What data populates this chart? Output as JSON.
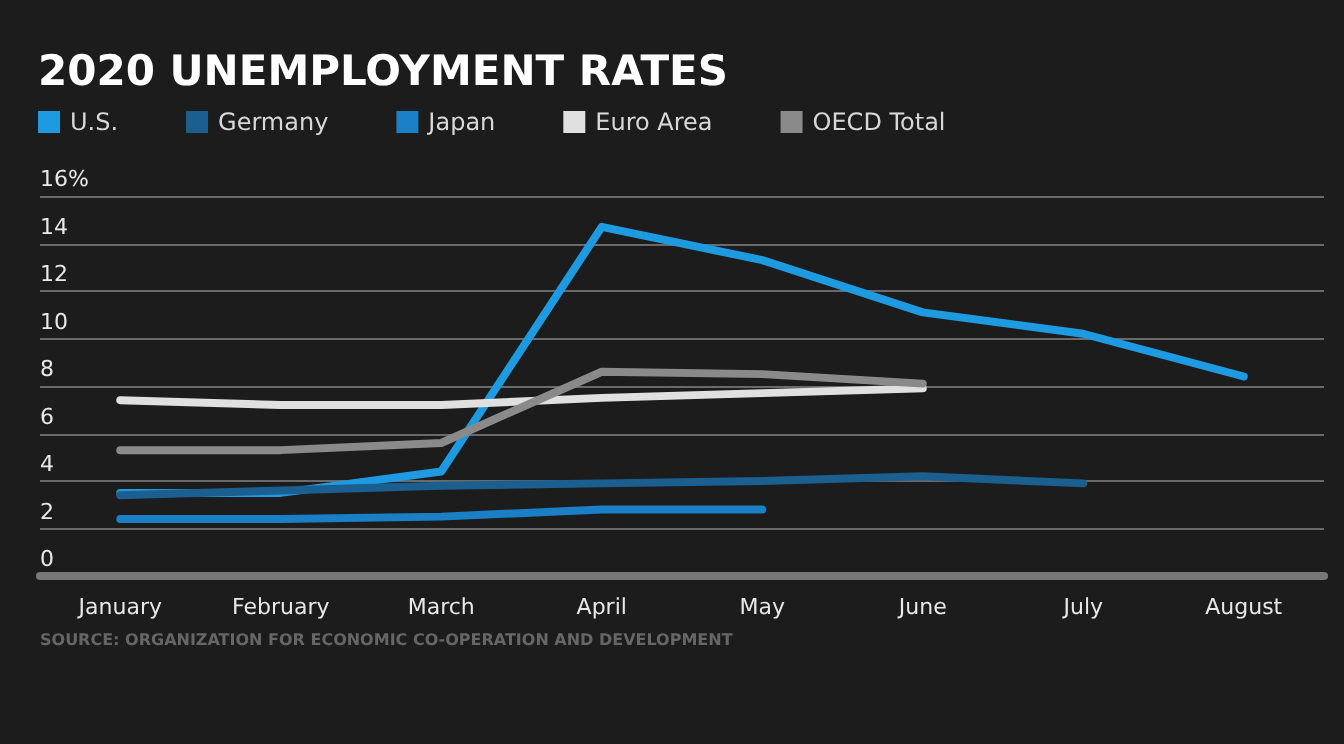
{
  "chart_data": {
    "type": "line",
    "title": "2020 UNEMPLOYMENT RATES",
    "categories": [
      "January",
      "February",
      "March",
      "April",
      "May",
      "June",
      "July",
      "August"
    ],
    "series": [
      {
        "name": "U.S.",
        "color": "#1e9be0",
        "values": [
          3.5,
          3.5,
          4.4,
          14.7,
          13.3,
          11.1,
          10.2,
          8.4
        ]
      },
      {
        "name": "Germany",
        "color": "#1a5f8f",
        "values": [
          3.4,
          3.6,
          3.8,
          3.9,
          4.0,
          4.2,
          3.9,
          null
        ]
      },
      {
        "name": "Japan",
        "color": "#1a7fc4",
        "values": [
          2.4,
          2.4,
          2.5,
          2.8,
          2.8,
          null,
          null,
          null
        ]
      },
      {
        "name": "Euro Area",
        "color": "#e0e0e0",
        "values": [
          7.4,
          7.2,
          7.2,
          7.5,
          7.7,
          7.9,
          null,
          null
        ]
      },
      {
        "name": "OECD Total",
        "color": "#8a8a8a",
        "values": [
          5.3,
          5.3,
          5.6,
          8.6,
          8.5,
          8.1,
          null,
          null
        ]
      }
    ],
    "ylim": [
      0,
      16
    ],
    "yticks": [
      0,
      2,
      4,
      6,
      8,
      10,
      12,
      14,
      {
        "value": 16,
        "label": "16%"
      }
    ],
    "grid": "y",
    "legend": "top left",
    "marker": "none",
    "line_style": "solid",
    "annotations": [
      "SOURCE: ORGANIZATION FOR ECONOMIC CO-OPERATION AND DEVELOPMENT"
    ]
  }
}
